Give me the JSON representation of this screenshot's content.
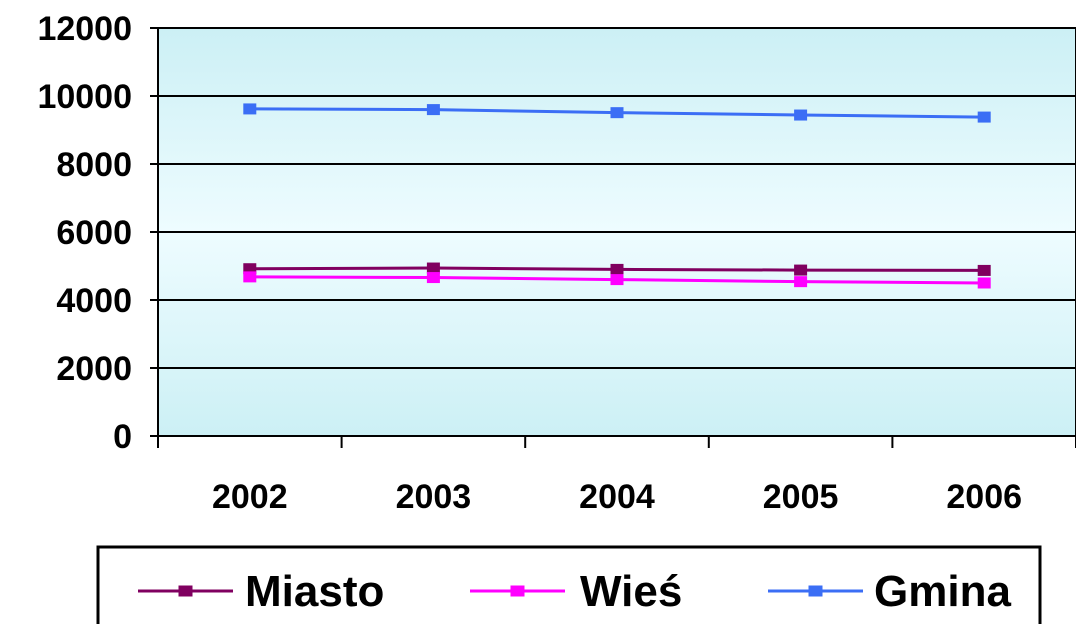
{
  "chart_data": {
    "type": "line",
    "title": "",
    "xlabel": "",
    "ylabel": "",
    "categories": [
      "2002",
      "2003",
      "2004",
      "2005",
      "2006"
    ],
    "ylim": [
      0,
      12000
    ],
    "y_ticks": [
      "0",
      "2000",
      "4000",
      "6000",
      "8000",
      "10000",
      "12000"
    ],
    "grid": true,
    "legend_position": "bottom",
    "plot_background": "#dff7fb",
    "series": [
      {
        "name": "Miasto",
        "color": "#800060",
        "values": [
          4920,
          4940,
          4900,
          4880,
          4870
        ]
      },
      {
        "name": "Wieś",
        "color": "#ff00ff",
        "values": [
          4680,
          4660,
          4600,
          4540,
          4500
        ]
      },
      {
        "name": "Gmina",
        "color": "#3b6ef5",
        "values": [
          9620,
          9600,
          9510,
          9440,
          9380
        ]
      }
    ]
  }
}
